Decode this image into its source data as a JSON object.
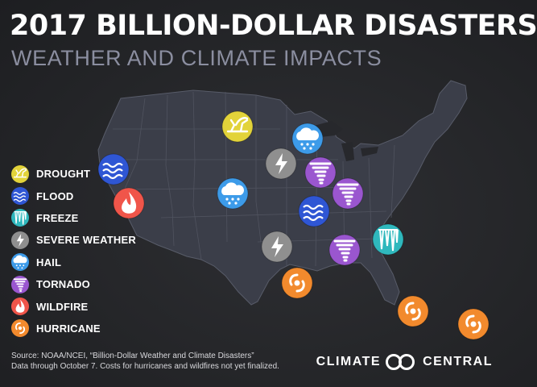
{
  "title": "2017 BILLION-DOLLAR DISASTERS",
  "subtitle": "WEATHER AND CLIMATE IMPACTS",
  "colors": {
    "drought": "#e2d33a",
    "flood": "#2f56d4",
    "freeze": "#2fb8bd",
    "severe_weather": "#8f8f8f",
    "hail": "#3d9be9",
    "tornado": "#9a56cf",
    "wildfire": "#f0554a",
    "hurricane": "#f28a2d",
    "map_fill": "#3b3e49",
    "background": "#262729"
  },
  "legend": [
    {
      "key": "drought",
      "label": "DROUGHT",
      "icon": "drought-cracked-earth-icon"
    },
    {
      "key": "flood",
      "label": "FLOOD",
      "icon": "flood-waves-icon"
    },
    {
      "key": "freeze",
      "label": "FREEZE",
      "icon": "freeze-icicles-icon"
    },
    {
      "key": "severe_weather",
      "label": "SEVERE WEATHER",
      "icon": "lightning-bolt-icon"
    },
    {
      "key": "hail",
      "label": "HAIL",
      "icon": "hail-cloud-icon"
    },
    {
      "key": "tornado",
      "label": "TORNADO",
      "icon": "tornado-icon"
    },
    {
      "key": "wildfire",
      "label": "WILDFIRE",
      "icon": "flame-icon"
    },
    {
      "key": "hurricane",
      "label": "HURRICANE",
      "icon": "hurricane-icon"
    }
  ],
  "events": [
    {
      "type": "drought",
      "region": "Northern Plains"
    },
    {
      "type": "hail",
      "region": "Minnesota"
    },
    {
      "type": "severe_weather",
      "region": "Upper Midwest"
    },
    {
      "type": "flood",
      "region": "California"
    },
    {
      "type": "wildfire",
      "region": "California"
    },
    {
      "type": "hail",
      "region": "Colorado"
    },
    {
      "type": "tornado",
      "region": "Midwest"
    },
    {
      "type": "tornado",
      "region": "Ohio Valley"
    },
    {
      "type": "flood",
      "region": "Mississippi Valley"
    },
    {
      "type": "freeze",
      "region": "Southeast"
    },
    {
      "type": "severe_weather",
      "region": "Southern Plains"
    },
    {
      "type": "tornado",
      "region": "Southeast"
    },
    {
      "type": "hurricane",
      "region": "Texas"
    },
    {
      "type": "hurricane",
      "region": "Florida"
    },
    {
      "type": "hurricane",
      "region": "Puerto Rico"
    }
  ],
  "source": {
    "line1": "Source: NOAA/NCEI, “Billion-Dollar Weather and Climate Disasters”",
    "line2": "Data through October 7. Costs for hurricanes and wildfires not yet finalized."
  },
  "brand": {
    "left": "CLIMATE",
    "right": "CENTRAL"
  }
}
